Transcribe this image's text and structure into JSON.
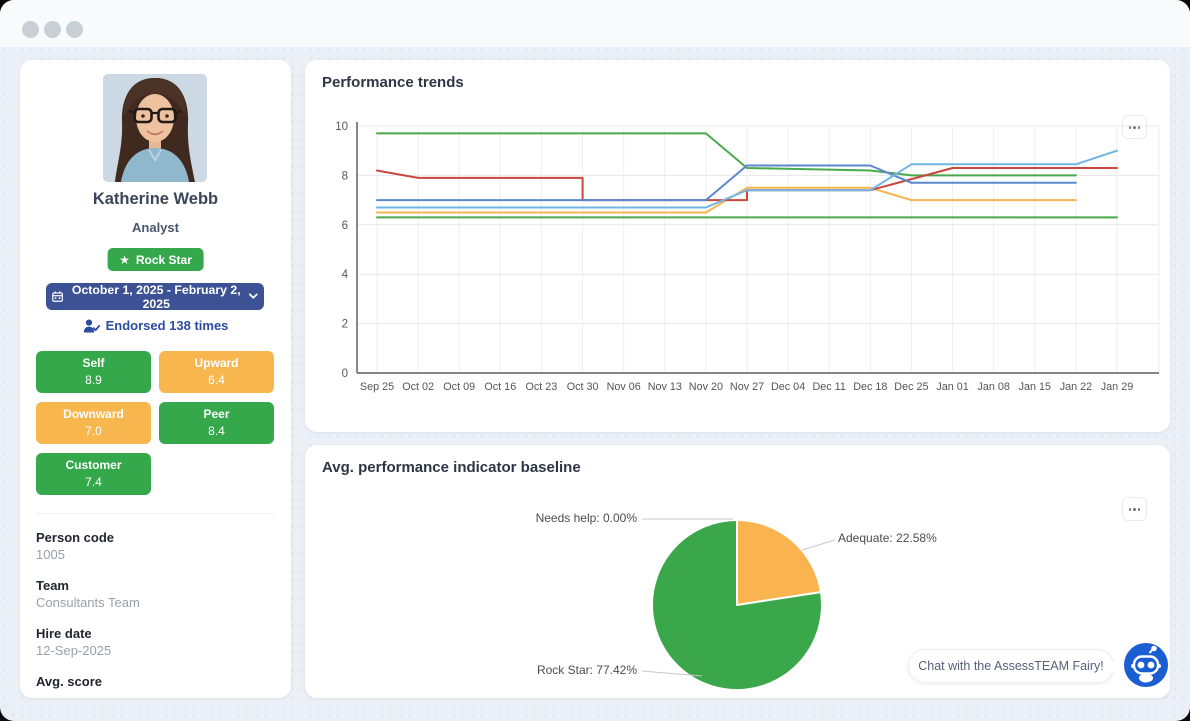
{
  "profile": {
    "name": "Katherine Webb",
    "role": "Analyst",
    "badge": {
      "label": "Rock Star",
      "color": "#35a84c",
      "star_glyph": "★"
    },
    "date_range": "October 1, 2025 - February 2, 2025",
    "endorsed": "Endorsed 138 times",
    "scores": [
      {
        "label": "Self",
        "value": "8.9",
        "color": "#35a84c"
      },
      {
        "label": "Upward",
        "value": "6.4",
        "color": "#f8b64e"
      },
      {
        "label": "Downward",
        "value": "7.0",
        "color": "#f8b64e"
      },
      {
        "label": "Peer",
        "value": "8.4",
        "color": "#35a84c"
      },
      {
        "label": "Customer",
        "value": "7.4",
        "color": "#35a84c"
      }
    ],
    "details": [
      {
        "label": "Person code",
        "value": "1005"
      },
      {
        "label": "Team",
        "value": "Consultants Team"
      },
      {
        "label": "Hire date",
        "value": "12-Sep-2025"
      },
      {
        "label": "Avg. score",
        "value": ""
      }
    ]
  },
  "trends_card": {
    "title": "Performance trends"
  },
  "baseline_card": {
    "title": "Avg. performance indicator baseline"
  },
  "chat": {
    "label": "Chat with the AssessTEAM Fairy!"
  },
  "chart_data": [
    {
      "type": "line",
      "title": "Performance trends",
      "x_labels": [
        "Sep 25",
        "Oct 02",
        "Oct 09",
        "Oct 16",
        "Oct 23",
        "Oct 30",
        "Nov 06",
        "Nov 13",
        "Nov 20",
        "Nov 27",
        "Dec 04",
        "Dec 11",
        "Dec 18",
        "Dec 25",
        "Jan 01",
        "Jan 08",
        "Jan 15",
        "Jan 22",
        "Jan 29"
      ],
      "ylim": [
        0,
        10
      ],
      "y_ticks": [
        0,
        2,
        4,
        6,
        8,
        10
      ],
      "grid": true,
      "legend": "none",
      "series": [
        {
          "name": "green-line-1",
          "color": "#4aa94d",
          "points": [
            [
              0,
              9.7
            ],
            [
              8,
              9.7
            ],
            [
              9,
              8.3
            ],
            [
              12,
              8.2
            ],
            [
              13,
              8.0
            ],
            [
              17,
              8.0
            ]
          ]
        },
        {
          "name": "green-line-2",
          "color": "#4aa94d",
          "points": [
            [
              0,
              6.3
            ],
            [
              18,
              6.3
            ]
          ]
        },
        {
          "name": "orange-line",
          "color": "#f6b451",
          "points": [
            [
              0,
              6.5
            ],
            [
              8,
              6.5
            ],
            [
              9,
              7.5
            ],
            [
              12,
              7.5
            ],
            [
              13,
              7.0
            ],
            [
              17,
              7.0
            ]
          ]
        },
        {
          "name": "red-line",
          "color": "#c9463c",
          "points": [
            [
              0,
              8.2
            ],
            [
              1,
              7.9
            ],
            [
              5,
              7.9
            ],
            [
              5,
              7.0
            ],
            [
              9,
              7.0
            ],
            [
              9,
              7.4
            ],
            [
              12,
              7.4
            ],
            [
              14,
              8.3
            ],
            [
              18,
              8.3
            ]
          ]
        },
        {
          "name": "blue-line",
          "color": "#5b87ce",
          "points": [
            [
              0,
              7.0
            ],
            [
              8,
              7.0
            ],
            [
              9,
              8.4
            ],
            [
              12,
              8.4
            ],
            [
              13,
              7.7
            ],
            [
              17,
              7.7
            ]
          ]
        },
        {
          "name": "light-blue-line",
          "color": "#70b5e3",
          "points": [
            [
              0,
              6.7
            ],
            [
              8,
              6.7
            ],
            [
              9,
              7.4
            ],
            [
              12,
              7.4
            ],
            [
              13,
              8.45
            ],
            [
              17,
              8.45
            ],
            [
              18,
              9.0
            ]
          ]
        }
      ]
    },
    {
      "type": "pie",
      "title": "Avg. performance indicator baseline",
      "slices": [
        {
          "label": "Needs help",
          "pct": 0.0,
          "color": null,
          "display": "Needs help: 0.00%"
        },
        {
          "label": "Adequate",
          "pct": 22.58,
          "color": "#f9b450",
          "display": "Adequate: 22.58%"
        },
        {
          "label": "Rock Star",
          "pct": 77.42,
          "color": "#3aa74a",
          "display": "Rock Star: 77.42%"
        }
      ],
      "legend": "none"
    }
  ]
}
